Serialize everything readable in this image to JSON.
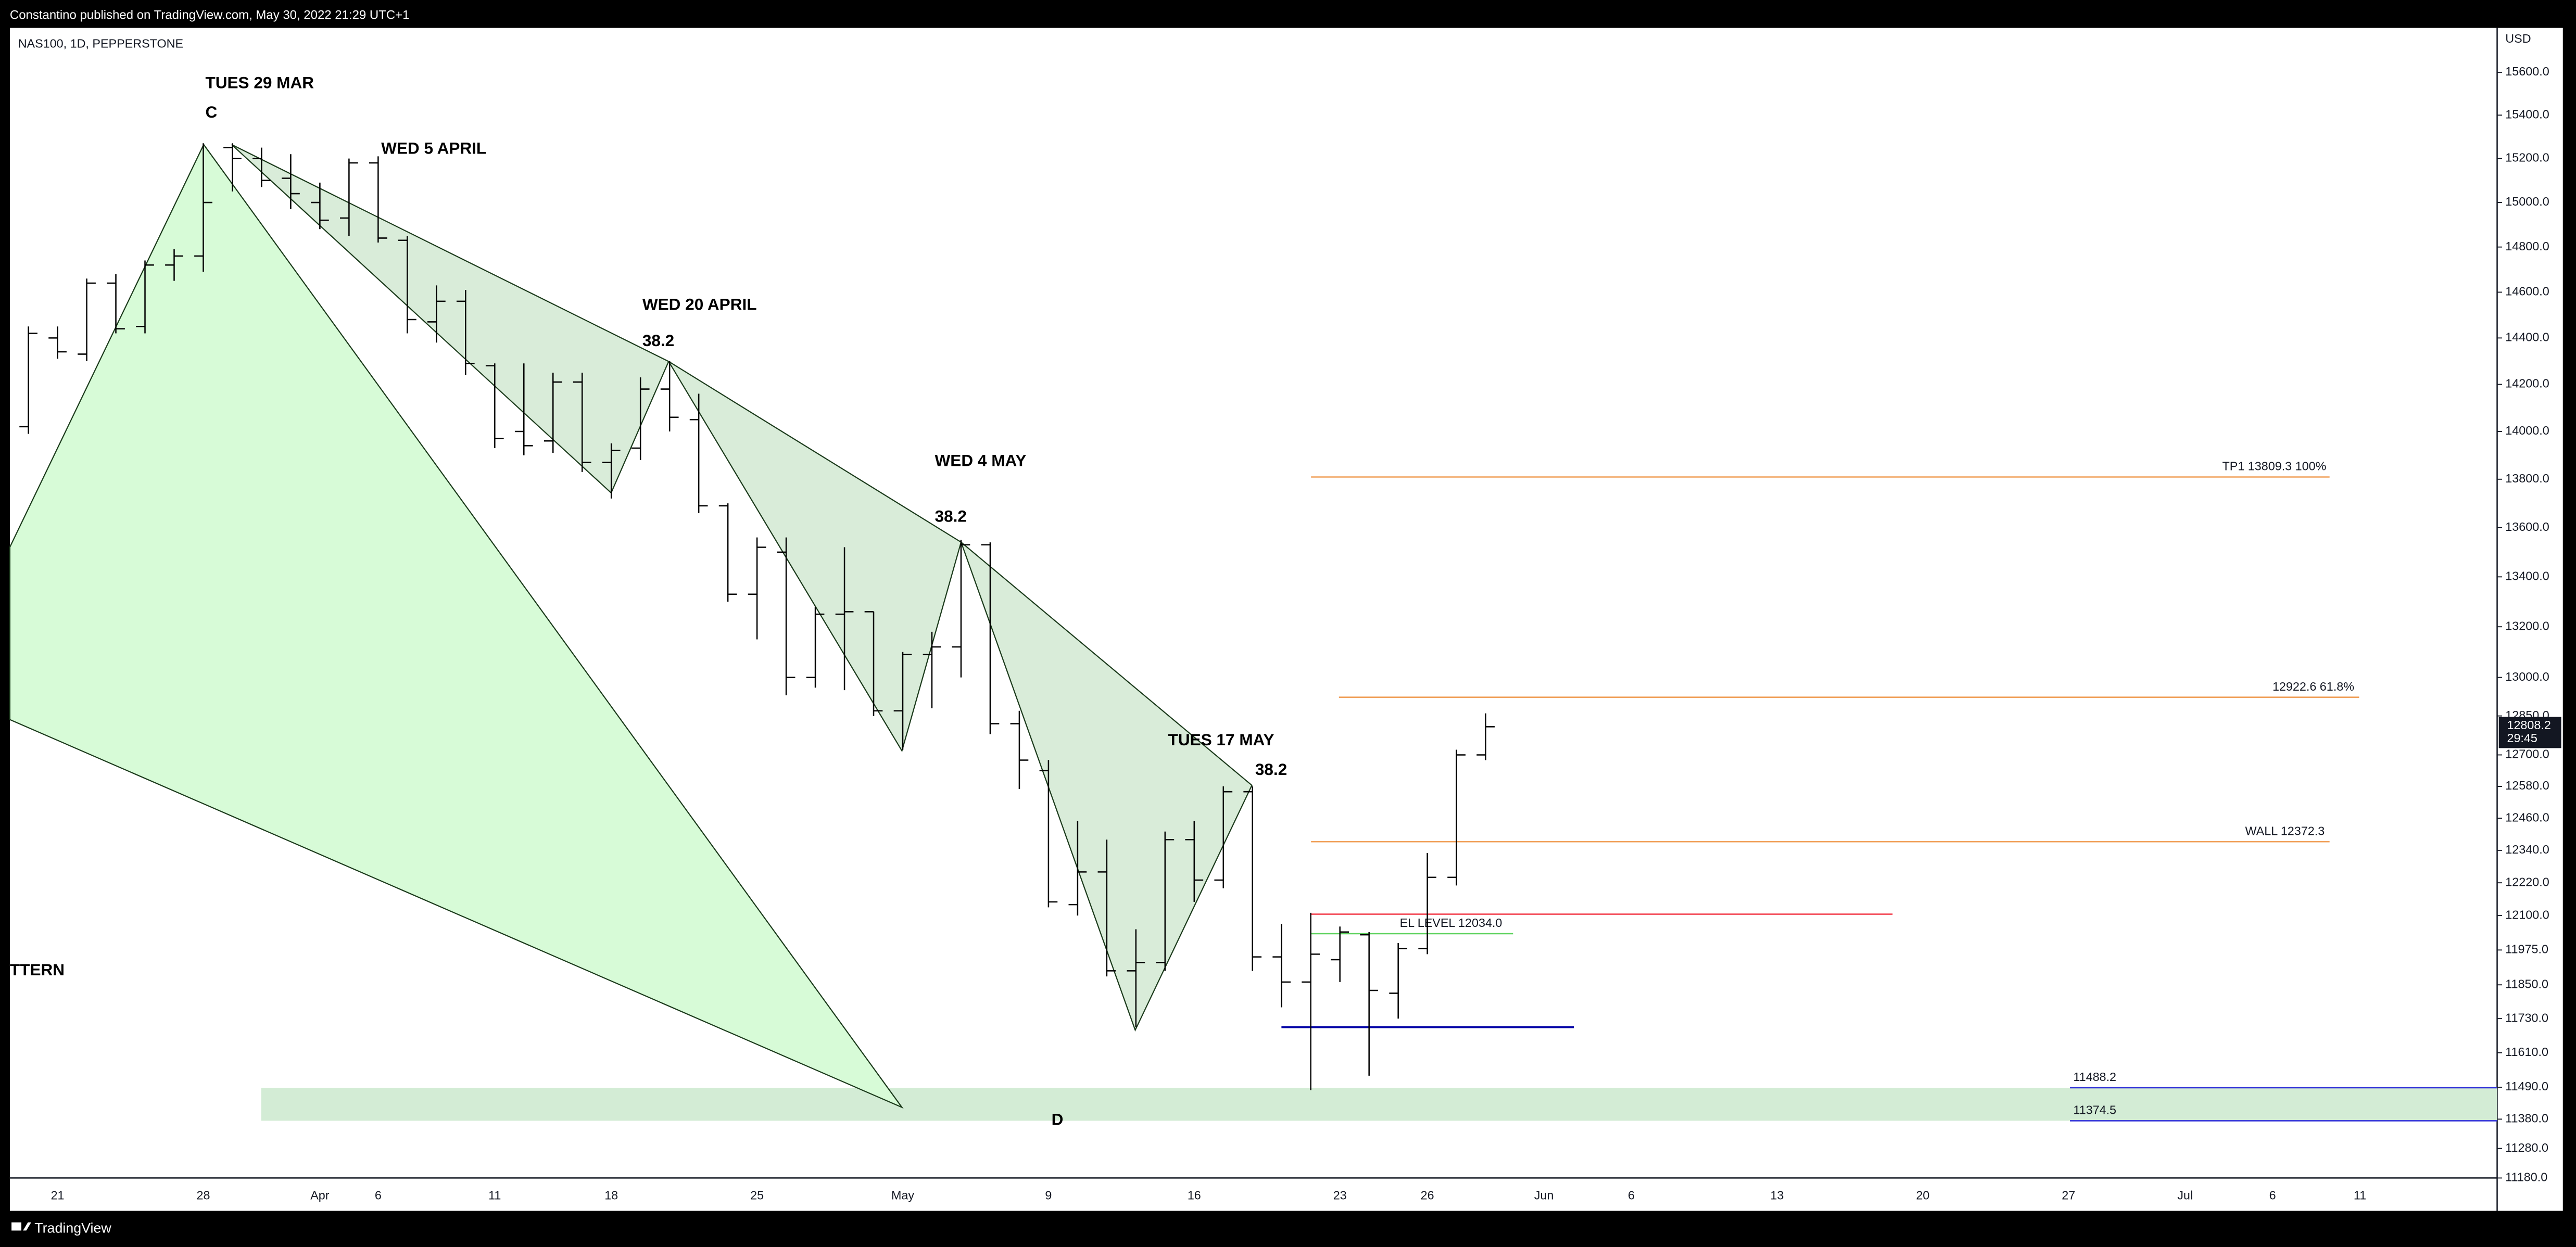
{
  "chart_data": {
    "type": "ohlc",
    "published": "Constantino published on TradingView.com, May 30, 2022 21:29 UTC+1",
    "title": "NAS100, 1D, PEPPERSTONE",
    "y_label": "USD",
    "brand": "TradingView",
    "log": true,
    "color": "#000000",
    "categories": [
      null,
      "21",
      null,
      null,
      null,
      null,
      "28",
      null,
      null,
      null,
      "Apr",
      null,
      "6",
      null,
      null,
      null,
      "11",
      null,
      null,
      null,
      "18",
      null,
      null,
      null,
      null,
      "25",
      null,
      null,
      null,
      null,
      "May",
      null,
      null,
      null,
      null,
      "9",
      null,
      null,
      null,
      null,
      "16",
      null,
      null,
      null,
      null,
      "23",
      null,
      null,
      "26",
      null,
      null,
      null,
      "Jun",
      null,
      null,
      "6",
      null,
      null,
      null,
      null,
      "13",
      null,
      null,
      null,
      null,
      "20",
      null,
      null,
      null,
      null,
      "27",
      null,
      null,
      null,
      "Jul",
      null,
      null,
      "6",
      null,
      null,
      "11",
      null,
      null,
      null
    ],
    "open": [
      14020,
      14400,
      14330,
      14640,
      14450,
      14720,
      14760,
      15250,
      15200,
      15110,
      15000,
      14930,
      15180,
      14830,
      14470,
      14560,
      14280,
      14000,
      13960,
      14210,
      13870,
      13930,
      14180,
      14050,
      13690,
      13330,
      13500,
      13000,
      13250,
      13260,
      12870,
      13090,
      13120,
      13530,
      12820,
      12640,
      12140,
      12260,
      11900,
      11930,
      12380,
      12230,
      12560,
      11950,
      11860,
      11940,
      12030,
      11820,
      11980,
      12240,
      12700,
      null,
      null,
      null,
      null,
      null,
      null,
      null,
      null,
      null,
      null,
      null,
      null,
      null,
      null,
      null,
      null,
      null,
      null,
      null,
      null,
      null,
      null,
      null,
      null,
      null,
      null,
      null,
      null,
      null,
      null,
      null,
      null,
      null
    ],
    "high": [
      14450,
      14450,
      14660,
      14680,
      14740,
      14790,
      15270,
      15270,
      15250,
      15220,
      15090,
      15200,
      15210,
      14850,
      14630,
      14610,
      14290,
      14290,
      14250,
      14250,
      13950,
      14230,
      14300,
      14160,
      13700,
      13560,
      13560,
      13280,
      13520,
      13260,
      13100,
      13180,
      13550,
      13540,
      12870,
      12680,
      12450,
      12380,
      12050,
      12410,
      12450,
      12580,
      12580,
      12070,
      12110,
      12060,
      12040,
      12000,
      12330,
      12720,
      12860,
      null,
      null,
      null,
      null,
      null,
      null,
      null,
      null,
      null,
      null,
      null,
      null,
      null,
      null,
      null,
      null,
      null,
      null,
      null,
      null,
      null,
      null,
      null,
      null,
      null,
      null,
      null,
      null,
      null,
      null,
      null,
      null,
      null
    ],
    "low": [
      13990,
      14310,
      14300,
      14420,
      14420,
      14650,
      14690,
      15050,
      15070,
      14970,
      14880,
      14850,
      14820,
      14420,
      14380,
      14240,
      13930,
      13900,
      13910,
      13830,
      13720,
      13880,
      14000,
      13660,
      13300,
      13150,
      12930,
      12960,
      12950,
      12850,
      12720,
      12880,
      13000,
      12780,
      12570,
      12130,
      12100,
      11880,
      11700,
      11900,
      12150,
      12200,
      11900,
      11770,
      11480,
      11860,
      11530,
      11730,
      11960,
      12210,
      12680,
      null,
      null,
      null,
      null,
      null,
      null,
      null,
      null,
      null,
      null,
      null,
      null,
      null,
      null,
      null,
      null,
      null,
      null,
      null,
      null,
      null,
      null,
      null,
      null,
      null,
      null,
      null,
      null,
      null,
      null,
      null,
      null,
      null
    ],
    "close": [
      14420,
      14340,
      14640,
      14440,
      14720,
      14760,
      15000,
      15200,
      15100,
      15040,
      14920,
      15180,
      14840,
      14480,
      14560,
      14290,
      13970,
      13940,
      14210,
      13870,
      13920,
      14180,
      14060,
      13690,
      13330,
      13520,
      13000,
      13250,
      13260,
      12870,
      13090,
      13120,
      13530,
      12820,
      12680,
      12150,
      12260,
      11900,
      11930,
      12380,
      12230,
      12560,
      11950,
      11860,
      11960,
      12040,
      11830,
      11980,
      12240,
      12700,
      12808.2,
      null,
      null,
      null,
      null,
      null,
      null,
      null,
      null,
      null,
      null,
      null,
      null,
      null,
      null,
      null,
      null,
      null,
      null,
      null,
      null,
      null,
      null,
      null,
      null,
      null,
      null,
      null,
      null,
      null,
      null,
      null,
      null,
      null
    ],
    "last_price": 12808.2,
    "countdown": "29:45",
    "ylim": [
      11180,
      15810
    ],
    "yticks": [
      {
        "value": 15600,
        "label": "15600.0"
      },
      {
        "value": 15400,
        "label": "15400.0"
      },
      {
        "value": 15200,
        "label": "15200.0"
      },
      {
        "value": 15000,
        "label": "15000.0"
      },
      {
        "value": 14800,
        "label": "14800.0"
      },
      {
        "value": 14600,
        "label": "14600.0"
      },
      {
        "value": 14400,
        "label": "14400.0"
      },
      {
        "value": 14200,
        "label": "14200.0"
      },
      {
        "value": 14000,
        "label": "14000.0"
      },
      {
        "value": 13800,
        "label": "13800.0"
      },
      {
        "value": 13600,
        "label": "13600.0"
      },
      {
        "value": 13400,
        "label": "13400.0"
      },
      {
        "value": 13200,
        "label": "13200.0"
      },
      {
        "value": 13000,
        "label": "13000.0"
      },
      {
        "value": 12850,
        "label": "12850.0"
      },
      {
        "value": 12700,
        "label": "12700.0"
      },
      {
        "value": 12580,
        "label": "12580.0"
      },
      {
        "value": 12460,
        "label": "12460.0"
      },
      {
        "value": 12340,
        "label": "12340.0"
      },
      {
        "value": 12220,
        "label": "12220.0"
      },
      {
        "value": 12100,
        "label": "12100.0"
      },
      {
        "value": 11975,
        "label": "11975.0"
      },
      {
        "value": 11850,
        "label": "11850.0"
      },
      {
        "value": 11730,
        "label": "11730.0"
      },
      {
        "value": 11610,
        "label": "11610.0"
      },
      {
        "value": 11490,
        "label": "11490.0"
      },
      {
        "value": 11380,
        "label": "11380.0"
      },
      {
        "value": 11280,
        "label": "11280.0"
      },
      {
        "value": 11180,
        "label": "11180.0"
      }
    ],
    "grid": false,
    "levels": [
      {
        "value": 13809.3,
        "label": "TP1 13809.3 100%",
        "color": "#f0a05a"
      },
      {
        "value": 12922.6,
        "label": "12922.6 61.8%",
        "color": "#f0a05a"
      },
      {
        "value": 12372.3,
        "label": "WALL 12372.3",
        "color": "#f0a05a"
      },
      {
        "value": 12105,
        "color": "#f23645"
      },
      {
        "value": 12034.0,
        "label": "EL LEVEL 12034.0",
        "color": "#5fd35f"
      },
      {
        "value": 11700,
        "color": "#0a0aa8"
      },
      {
        "value": 11488.2,
        "label": "11488.2",
        "color": "#3030d8"
      },
      {
        "value": 11374.5,
        "label": "11374.5",
        "color": "#3030d8"
      }
    ],
    "band_color": "#d3ecd5",
    "annotations": [
      "TUES 29  MAR",
      "C",
      "WED 5 APRIL",
      "WED 20  APRIL",
      "38.2",
      "WED 4 MAY",
      "38.2",
      "TUES 17 MAY",
      "38.2",
      "TTERN",
      "D"
    ]
  }
}
